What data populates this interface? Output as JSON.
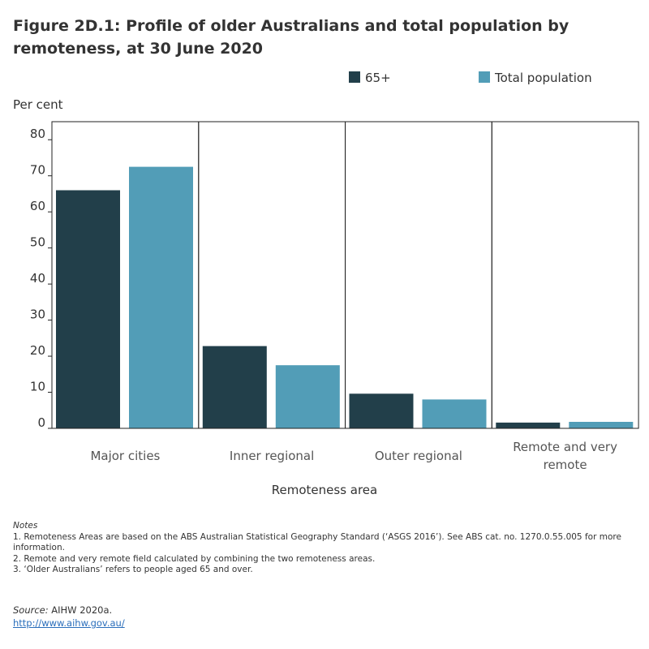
{
  "title": "Figure 2D.1: Profile of older Australians and total population by remoteness, at 30 June 2020",
  "colors": {
    "series_65": "#223f4a",
    "series_total": "#529db7"
  },
  "chart_data": {
    "type": "bar",
    "title": "Figure 2D.1: Profile of older Australians and total population by remoteness, at 30 June 2020",
    "categories": [
      "Major cities",
      "Inner regional",
      "Outer regional",
      "Remote and very remote"
    ],
    "series": [
      {
        "name": "65+",
        "values": [
          66.0,
          22.8,
          9.6,
          1.6
        ]
      },
      {
        "name": "Total population",
        "values": [
          72.5,
          17.5,
          8.0,
          1.8
        ]
      }
    ],
    "xlabel": "Remoteness area",
    "ylabel": "Per cent",
    "ylim": [
      0,
      85
    ],
    "yticks": [
      0,
      10,
      20,
      30,
      40,
      50,
      60,
      70,
      80
    ],
    "grid": false,
    "legend_position": "top-right"
  },
  "notes": {
    "heading": "Notes",
    "items": [
      "1. Remoteness Areas are based on the ABS Australian Statistical Geography Standard (‘ASGS 2016’). See ABS cat. no. 1270.0.55.005 for more information.",
      "2. Remote and very remote field calculated by combining the two remoteness areas.",
      "3. ‘Older Australians’ refers to people aged 65 and over."
    ]
  },
  "source": {
    "label": "Source:",
    "text": "AIHW 2020a.",
    "link": "http://www.aihw.gov.au/"
  }
}
